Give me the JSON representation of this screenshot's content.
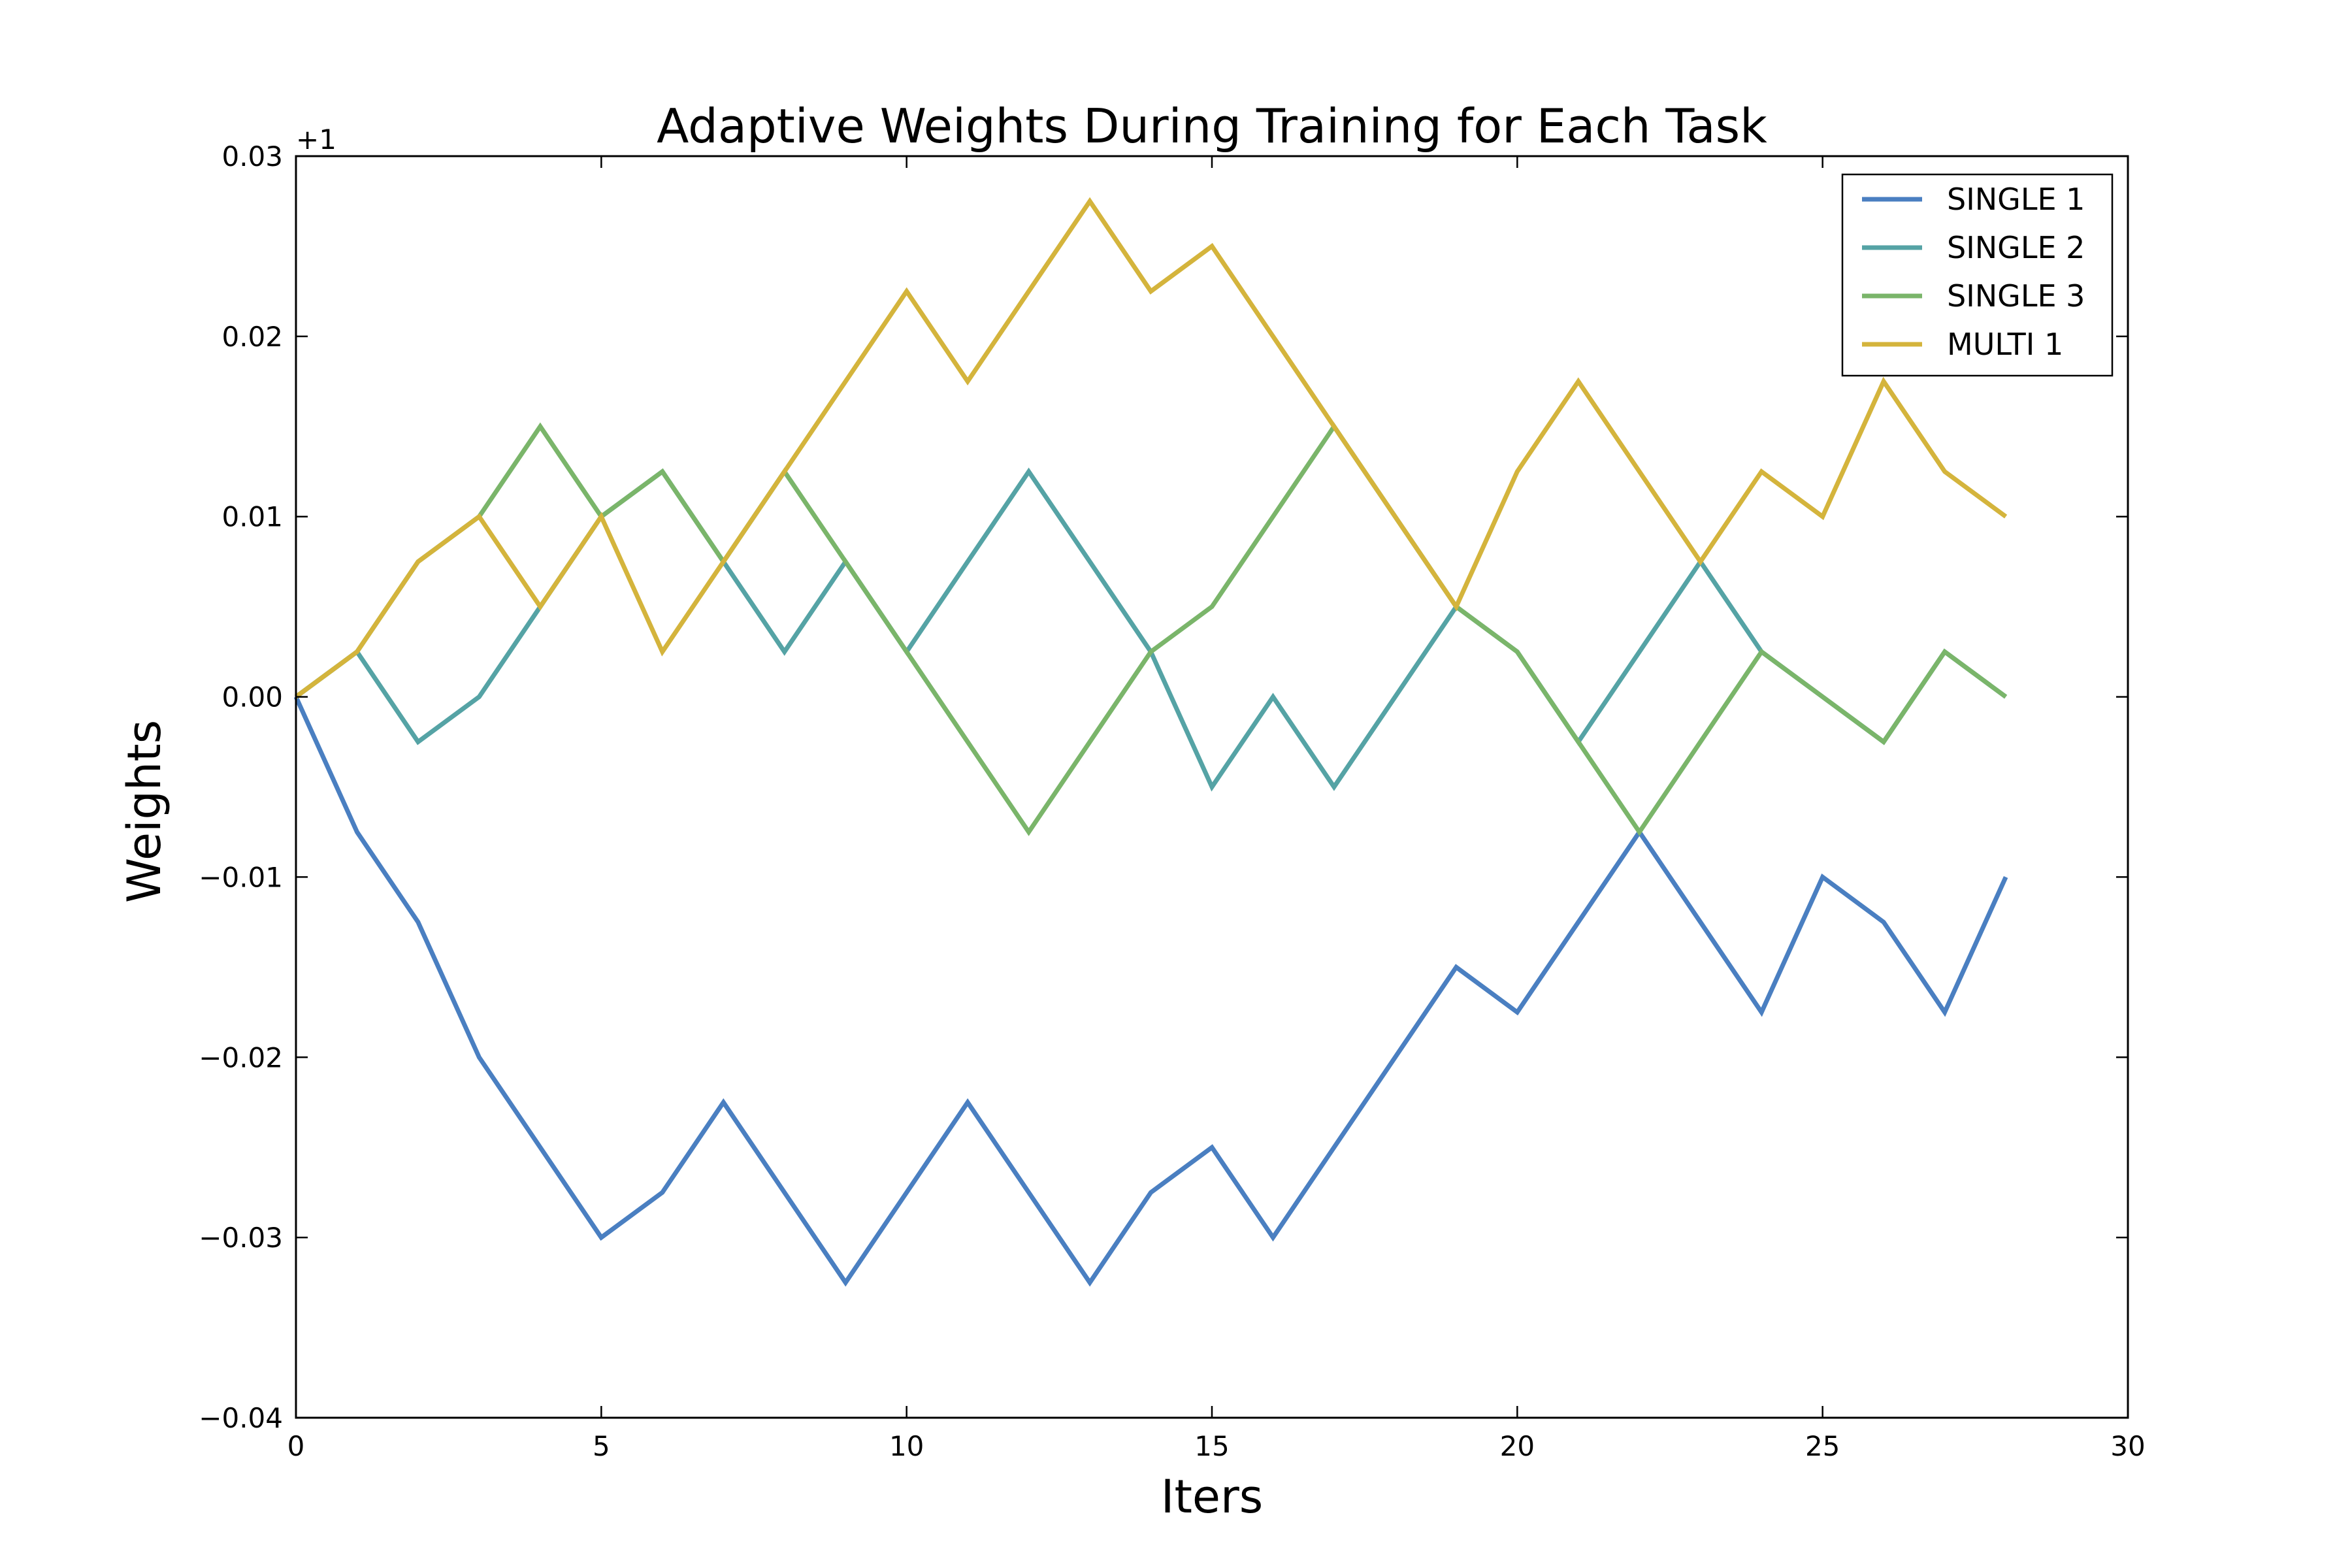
{
  "chart_data": {
    "type": "line",
    "title": "Adaptive Weights During Training for Each Task",
    "xlabel": "Iters",
    "ylabel": "Weights",
    "y_offset_label": "+1",
    "xlim": [
      0,
      30
    ],
    "ylim": [
      -0.04,
      0.03
    ],
    "xticks": [
      0,
      5,
      10,
      15,
      20,
      25,
      30
    ],
    "xtick_labels": [
      "0",
      "5",
      "10",
      "15",
      "20",
      "25",
      "30"
    ],
    "yticks": [
      0.03,
      0.02,
      0.01,
      0.0,
      -0.01,
      -0.02,
      -0.03,
      -0.04
    ],
    "ytick_labels": [
      "0.03",
      "0.02",
      "0.01",
      "0.00",
      "−0.01",
      "−0.02",
      "−0.03",
      "−0.04"
    ],
    "grid": false,
    "legend_position": "top-right",
    "x": [
      0,
      1,
      2,
      3,
      4,
      5,
      6,
      7,
      8,
      9,
      10,
      11,
      12,
      13,
      14,
      15,
      16,
      17,
      18,
      19,
      20,
      21,
      22,
      23,
      24,
      25,
      26,
      27,
      28
    ],
    "series": [
      {
        "name": "SINGLE 1",
        "color": "#4a7fc1",
        "values": [
          0.0,
          -0.0075,
          -0.0125,
          -0.02,
          -0.025,
          -0.03,
          -0.0275,
          -0.0225,
          -0.0275,
          -0.0325,
          -0.0275,
          -0.0225,
          -0.0275,
          -0.0325,
          -0.0275,
          -0.025,
          -0.03,
          -0.025,
          -0.02,
          -0.015,
          -0.0175,
          -0.0125,
          -0.0075,
          -0.0125,
          -0.0175,
          -0.01,
          -0.0125,
          -0.0175,
          -0.01
        ]
      },
      {
        "name": "SINGLE 2",
        "color": "#55a3a5",
        "values": [
          0.0,
          0.0025,
          -0.0025,
          0.0,
          0.005,
          0.01,
          0.0125,
          0.0075,
          0.0025,
          0.0075,
          0.0025,
          0.0075,
          0.0125,
          0.0075,
          0.0025,
          -0.005,
          0.0,
          -0.005,
          0.0,
          0.005,
          0.0025,
          -0.0025,
          0.0025,
          0.0075,
          0.0025,
          0.0,
          -0.0025,
          0.0025,
          0.0
        ]
      },
      {
        "name": "SINGLE 3",
        "color": "#7ab56a",
        "values": [
          0.0,
          0.0025,
          0.0075,
          0.01,
          0.015,
          0.01,
          0.0125,
          0.0075,
          0.0125,
          0.0075,
          0.0025,
          -0.0025,
          -0.0075,
          -0.0025,
          0.0025,
          0.005,
          0.01,
          0.015,
          0.01,
          0.005,
          0.0025,
          -0.0025,
          -0.0075,
          -0.0025,
          0.0025,
          0.0,
          -0.0025,
          0.0025,
          0.0
        ]
      },
      {
        "name": "MULTI 1",
        "color": "#d4b43c",
        "values": [
          0.0,
          0.0025,
          0.0075,
          0.01,
          0.005,
          0.01,
          0.0025,
          0.0075,
          0.0125,
          0.0175,
          0.0225,
          0.0175,
          0.0225,
          0.0275,
          0.0225,
          0.025,
          0.02,
          0.015,
          0.01,
          0.005,
          0.0125,
          0.0175,
          0.0125,
          0.0075,
          0.0125,
          0.01,
          0.0175,
          0.0125,
          0.01
        ]
      }
    ]
  }
}
